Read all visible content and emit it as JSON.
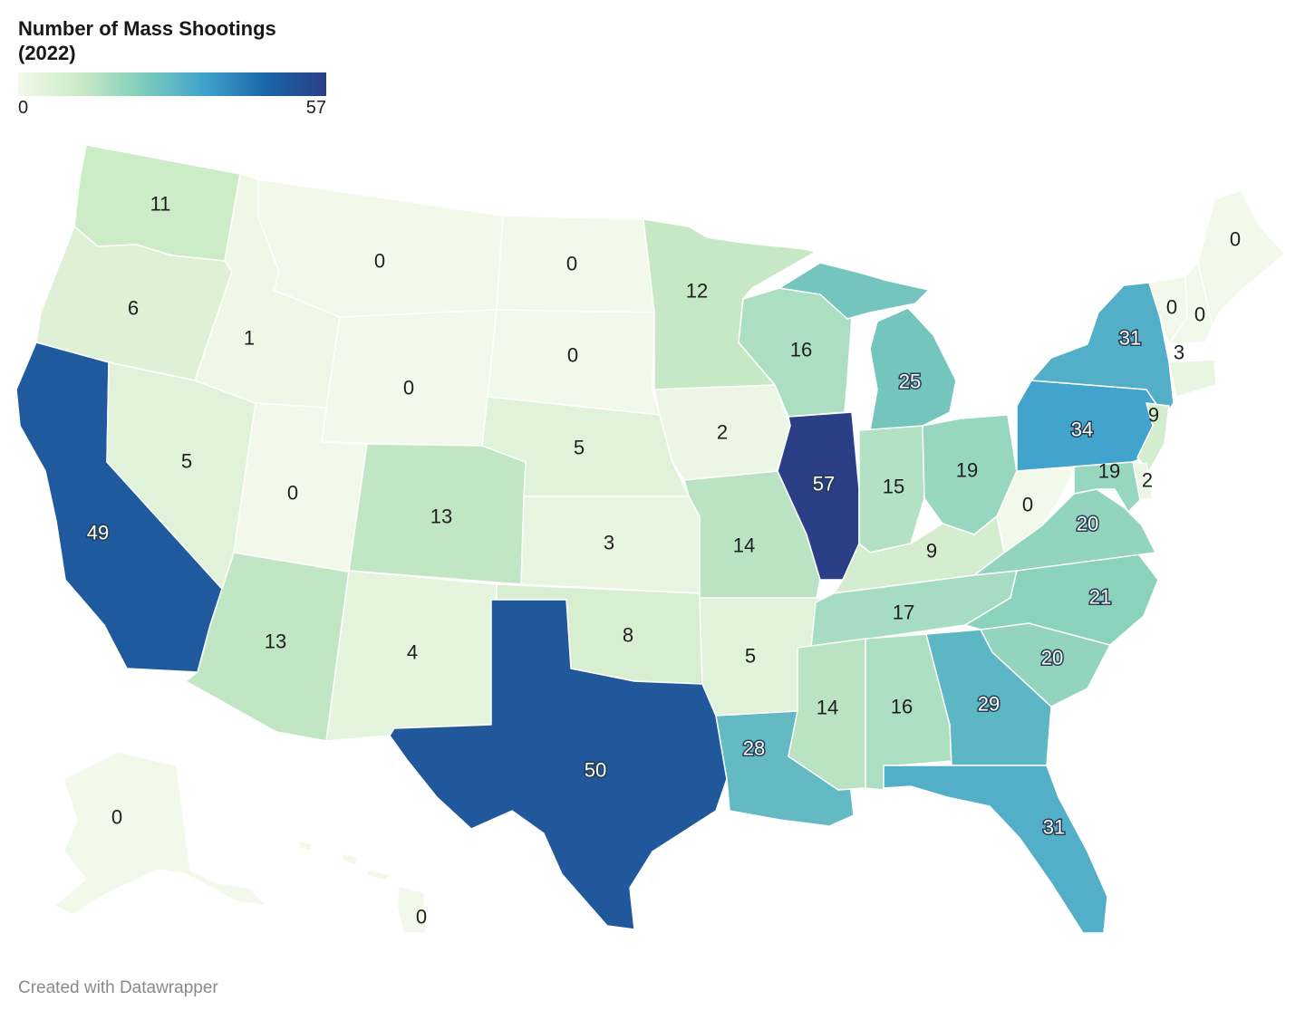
{
  "legend": {
    "title": "Number of Mass Shootings (2022)",
    "min_label": "0",
    "max_label": "57",
    "min": 0,
    "max": 57,
    "color_stops": [
      "#f3f9ea",
      "#cbeac6",
      "#7fcdbb",
      "#41a3cc",
      "#1a66a8",
      "#2b3f86"
    ]
  },
  "map_data": {
    "type": "choropleth",
    "region": "United States",
    "values": {
      "WA": 11,
      "OR": 6,
      "CA": 49,
      "NV": 5,
      "ID": 1,
      "MT": 0,
      "WY": 0,
      "UT": 0,
      "AZ": 13,
      "CO": 13,
      "NM": 4,
      "ND": 0,
      "SD": 0,
      "NE": 5,
      "KS": 3,
      "OK": 8,
      "TX": 50,
      "MN": 12,
      "IA": 2,
      "MO": 14,
      "AR": 5,
      "LA": 28,
      "WI": 16,
      "IL": 57,
      "MI": 25,
      "IN": 15,
      "OH": 19,
      "KY": 9,
      "TN": 17,
      "MS": 14,
      "AL": 16,
      "GA": 29,
      "FL": 31,
      "SC": 20,
      "NC": 21,
      "VA": 20,
      "WV": 0,
      "PA": 34,
      "NY": 31,
      "NJ": 9,
      "DE": 2,
      "MD": 19,
      "CT": 3,
      "VT": 0,
      "NH": 0,
      "ME": 0,
      "AK": 0,
      "HI": 0
    }
  },
  "footer": {
    "credit": "Created with Datawrapper"
  }
}
